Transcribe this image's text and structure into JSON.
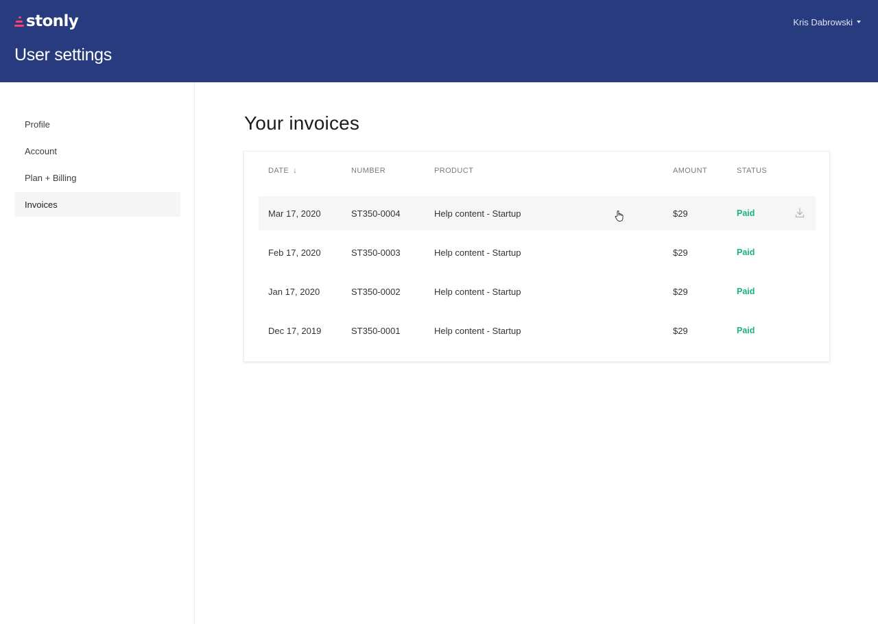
{
  "app": {
    "logo_text": "stonly",
    "page_title": "User settings",
    "user_name": "Kris Dabrowski"
  },
  "sidebar": {
    "items": [
      {
        "label": "Profile",
        "active": false
      },
      {
        "label": "Account",
        "active": false
      },
      {
        "label": "Plan + Billing",
        "active": false
      },
      {
        "label": "Invoices",
        "active": true
      }
    ]
  },
  "main": {
    "heading": "Your invoices",
    "table": {
      "columns": [
        "DATE",
        "NUMBER",
        "PRODUCT",
        "AMOUNT",
        "STATUS"
      ],
      "sort_column": "DATE",
      "sort_direction": "descending",
      "rows": [
        {
          "date": "Mar 17, 2020",
          "number": "ST350-0004",
          "product": "Help content - Startup",
          "amount": "$29",
          "status": "Paid"
        },
        {
          "date": "Feb 17, 2020",
          "number": "ST350-0003",
          "product": "Help content - Startup",
          "amount": "$29",
          "status": "Paid"
        },
        {
          "date": "Jan 17, 2020",
          "number": "ST350-0002",
          "product": "Help content - Startup",
          "amount": "$29",
          "status": "Paid"
        },
        {
          "date": "Dec 17, 2019",
          "number": "ST350-0001",
          "product": "Help content - Startup",
          "amount": "$29",
          "status": "Paid"
        }
      ]
    }
  },
  "colors": {
    "header_bg": "#283b7e",
    "brand_accent": "#ff3f6b",
    "status_paid": "#1bb277"
  },
  "icons": {
    "sort": "arrow-down-icon",
    "download": "download-icon",
    "user_menu": "caret-down-icon",
    "cursor": "hand-pointer-cursor"
  }
}
